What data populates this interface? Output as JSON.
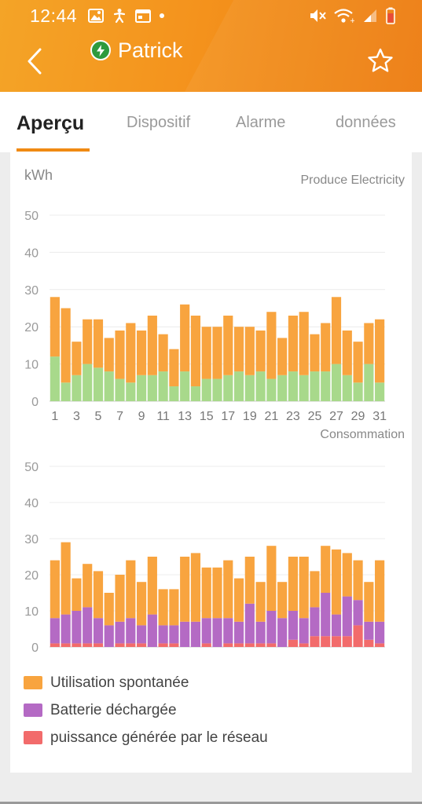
{
  "status": {
    "time": "12:44"
  },
  "header": {
    "title": "Patrick"
  },
  "tabs": [
    {
      "label": "Aperçu",
      "active": true
    },
    {
      "label": "Dispositif",
      "active": false
    },
    {
      "label": "Alarme",
      "active": false
    },
    {
      "label": "données",
      "active": false
    }
  ],
  "colors": {
    "orange": "#f8a43f",
    "green": "#a8d98b",
    "purple": "#b46ac4",
    "red": "#f26b6b",
    "accent": "#f08a13"
  },
  "chart_data": [
    {
      "type": "bar",
      "stacked": true,
      "title": "Produce Electricity",
      "ylabel": "kWh",
      "ylim": [
        0,
        50
      ],
      "yticks": [
        0,
        10,
        20,
        30,
        40,
        50
      ],
      "x": [
        1,
        2,
        3,
        4,
        5,
        6,
        7,
        8,
        9,
        10,
        11,
        12,
        13,
        14,
        15,
        16,
        17,
        18,
        19,
        20,
        21,
        22,
        23,
        24,
        25,
        26,
        27,
        28,
        29,
        30,
        31
      ],
      "xtick_labels": [
        "1",
        "3",
        "5",
        "7",
        "9",
        "11",
        "13",
        "15",
        "17",
        "19",
        "21",
        "23",
        "25",
        "27",
        "29",
        "31"
      ],
      "series": [
        {
          "color": "green",
          "values": [
            12,
            5,
            7,
            10,
            9,
            8,
            6,
            5,
            7,
            7,
            8,
            4,
            8,
            4,
            6,
            6,
            7,
            8,
            7,
            8,
            6,
            7,
            8,
            7,
            8,
            8,
            10,
            7,
            5,
            10,
            5
          ]
        },
        {
          "color": "orange",
          "values": [
            16,
            20,
            9,
            12,
            13,
            9,
            13,
            16,
            12,
            16,
            10,
            10,
            18,
            19,
            14,
            14,
            16,
            12,
            13,
            11,
            18,
            10,
            15,
            17,
            10,
            13,
            18,
            12,
            11,
            11,
            17
          ]
        }
      ]
    },
    {
      "type": "bar",
      "stacked": true,
      "title": "Consommation",
      "ylim": [
        0,
        50
      ],
      "yticks": [
        0,
        10,
        20,
        30,
        40,
        50
      ],
      "x": [
        1,
        2,
        3,
        4,
        5,
        6,
        7,
        8,
        9,
        10,
        11,
        12,
        13,
        14,
        15,
        16,
        17,
        18,
        19,
        20,
        21,
        22,
        23,
        24,
        25,
        26,
        27,
        28,
        29,
        30,
        31
      ],
      "series": [
        {
          "name": "puissance générée par le réseau",
          "color": "red",
          "values": [
            1,
            1,
            1,
            1,
            1,
            0,
            1,
            1,
            1,
            0,
            1,
            1,
            0,
            0,
            1,
            0,
            1,
            1,
            1,
            1,
            1,
            0,
            2,
            1,
            3,
            3,
            3,
            3,
            6,
            2,
            1
          ]
        },
        {
          "name": "Batterie déchargée",
          "color": "purple",
          "values": [
            7,
            8,
            9,
            10,
            7,
            6,
            6,
            7,
            5,
            9,
            5,
            5,
            7,
            7,
            7,
            8,
            7,
            6,
            11,
            6,
            9,
            8,
            8,
            7,
            8,
            12,
            6,
            11,
            7,
            5,
            6
          ]
        },
        {
          "name": "Utilisation spontanée",
          "color": "orange",
          "values": [
            16,
            20,
            9,
            12,
            13,
            9,
            13,
            16,
            12,
            16,
            10,
            10,
            18,
            19,
            14,
            14,
            16,
            12,
            13,
            11,
            18,
            10,
            15,
            17,
            10,
            13,
            18,
            12,
            11,
            11,
            17
          ]
        }
      ]
    }
  ],
  "legend": [
    {
      "label": "Utilisation spontanée",
      "color": "#f8a43f"
    },
    {
      "label": "Batterie déchargée",
      "color": "#b46ac4"
    },
    {
      "label": "puissance générée par le réseau",
      "color": "#f26b6b"
    }
  ]
}
